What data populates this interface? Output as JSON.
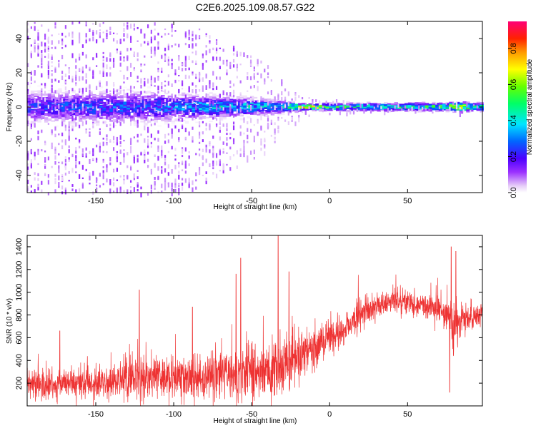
{
  "title": "C2E6.2025.109.08.57.G22",
  "chart_data": [
    {
      "type": "heatmap",
      "xlabel": "Height of straight line (km)",
      "ylabel": "Frequency (Hz)",
      "xlim": [
        -194,
        98
      ],
      "ylim": [
        -50,
        50
      ],
      "xticks": [
        -150,
        -100,
        -50,
        0,
        50
      ],
      "yticks": [
        -40,
        -20,
        0,
        20,
        40
      ],
      "colorbar": {
        "label": "Normalized spectral amplitude",
        "ticks": [
          0.0,
          0.2,
          0.4,
          0.6,
          0.8
        ],
        "range": [
          0,
          0.95
        ],
        "colormap": "white-purple-blue-cyan-green-yellow-orange-red-magenta"
      },
      "profile": {
        "x": [
          -194,
          -150,
          -120,
          -100,
          -80,
          -60,
          -40,
          -30,
          -20,
          -10,
          0,
          20,
          40,
          60,
          75,
          82,
          90,
          98
        ],
        "band_hz": [
          8,
          8,
          8,
          7,
          6,
          5,
          4,
          3,
          2,
          1.5,
          2,
          2,
          2,
          2,
          2,
          3,
          2,
          2
        ],
        "peak_amp": [
          0.25,
          0.3,
          0.3,
          0.35,
          0.4,
          0.42,
          0.45,
          0.45,
          0.75,
          0.85,
          0.55,
          0.55,
          0.55,
          0.55,
          0.6,
          0.85,
          0.65,
          0.55
        ],
        "scatter_hz": [
          50,
          50,
          50,
          50,
          45,
          35,
          25,
          15,
          8,
          5,
          5,
          3,
          3,
          3,
          3,
          4,
          3,
          3
        ]
      }
    },
    {
      "type": "line",
      "xlabel": "Height of straight line (km)",
      "ylabel": "SNR (10 * v/v)",
      "xlim": [
        -194,
        98
      ],
      "ylim": [
        0,
        1500
      ],
      "xticks": [
        -150,
        -100,
        -50,
        0,
        50
      ],
      "yticks": [
        200,
        400,
        600,
        800,
        1000,
        1200,
        1400
      ],
      "color": "#ee3333",
      "series": [
        {
          "x": [
            -194,
            -180,
            -160,
            -140,
            -125,
            -110,
            -90,
            -75,
            -60,
            -50,
            -40,
            -30,
            -20,
            -10,
            0,
            10,
            20,
            30,
            40,
            50,
            60,
            70,
            75,
            80,
            85,
            90,
            98
          ],
          "mean": [
            210,
            190,
            200,
            210,
            260,
            250,
            240,
            270,
            280,
            290,
            310,
            330,
            420,
            520,
            620,
            690,
            800,
            880,
            920,
            910,
            880,
            850,
            820,
            680,
            760,
            800,
            780
          ],
          "spread": [
            140,
            130,
            140,
            150,
            200,
            180,
            190,
            220,
            230,
            260,
            260,
            300,
            200,
            180,
            140,
            140,
            150,
            120,
            110,
            110,
            100,
            130,
            200,
            250,
            160,
            120,
            100
          ]
        }
      ],
      "peaks": [
        {
          "x": -173,
          "y": 660
        },
        {
          "x": -122,
          "y": 1020
        },
        {
          "x": -88,
          "y": 870
        },
        {
          "x": -60,
          "y": 1160
        },
        {
          "x": -57,
          "y": 1300
        },
        {
          "x": -33,
          "y": 1500
        },
        {
          "x": -26,
          "y": 1180
        },
        {
          "x": 78,
          "y": 1400
        },
        {
          "x": 81,
          "y": 1360
        }
      ],
      "dips": [
        {
          "x": 77,
          "y": 120
        }
      ]
    }
  ]
}
